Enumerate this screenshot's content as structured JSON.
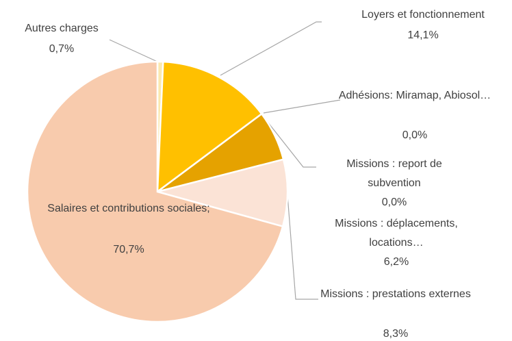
{
  "chart_data": {
    "type": "pie",
    "categories": [
      "Autres charges",
      "Loyers et fonctionnement",
      "Adhésions: Miramap, Abiosol…",
      "Missions : report de subvention",
      "Missions : déplacements, locations…",
      "Missions : prestations externes",
      "Salaires et contributions sociales;"
    ],
    "values": [
      0.7,
      14.1,
      0.0,
      0.0,
      6.2,
      8.3,
      70.7
    ],
    "value_labels": [
      "0,7%",
      "14,1%",
      "0,0%",
      "0,0%",
      "6,2%",
      "8,3%",
      "70,7%"
    ],
    "colors": [
      "#fbe9b0",
      "#ffc000",
      "#c99000",
      "#f4b183",
      "#e5a200",
      "#fbe3d6",
      "#f8cbad"
    ]
  }
}
